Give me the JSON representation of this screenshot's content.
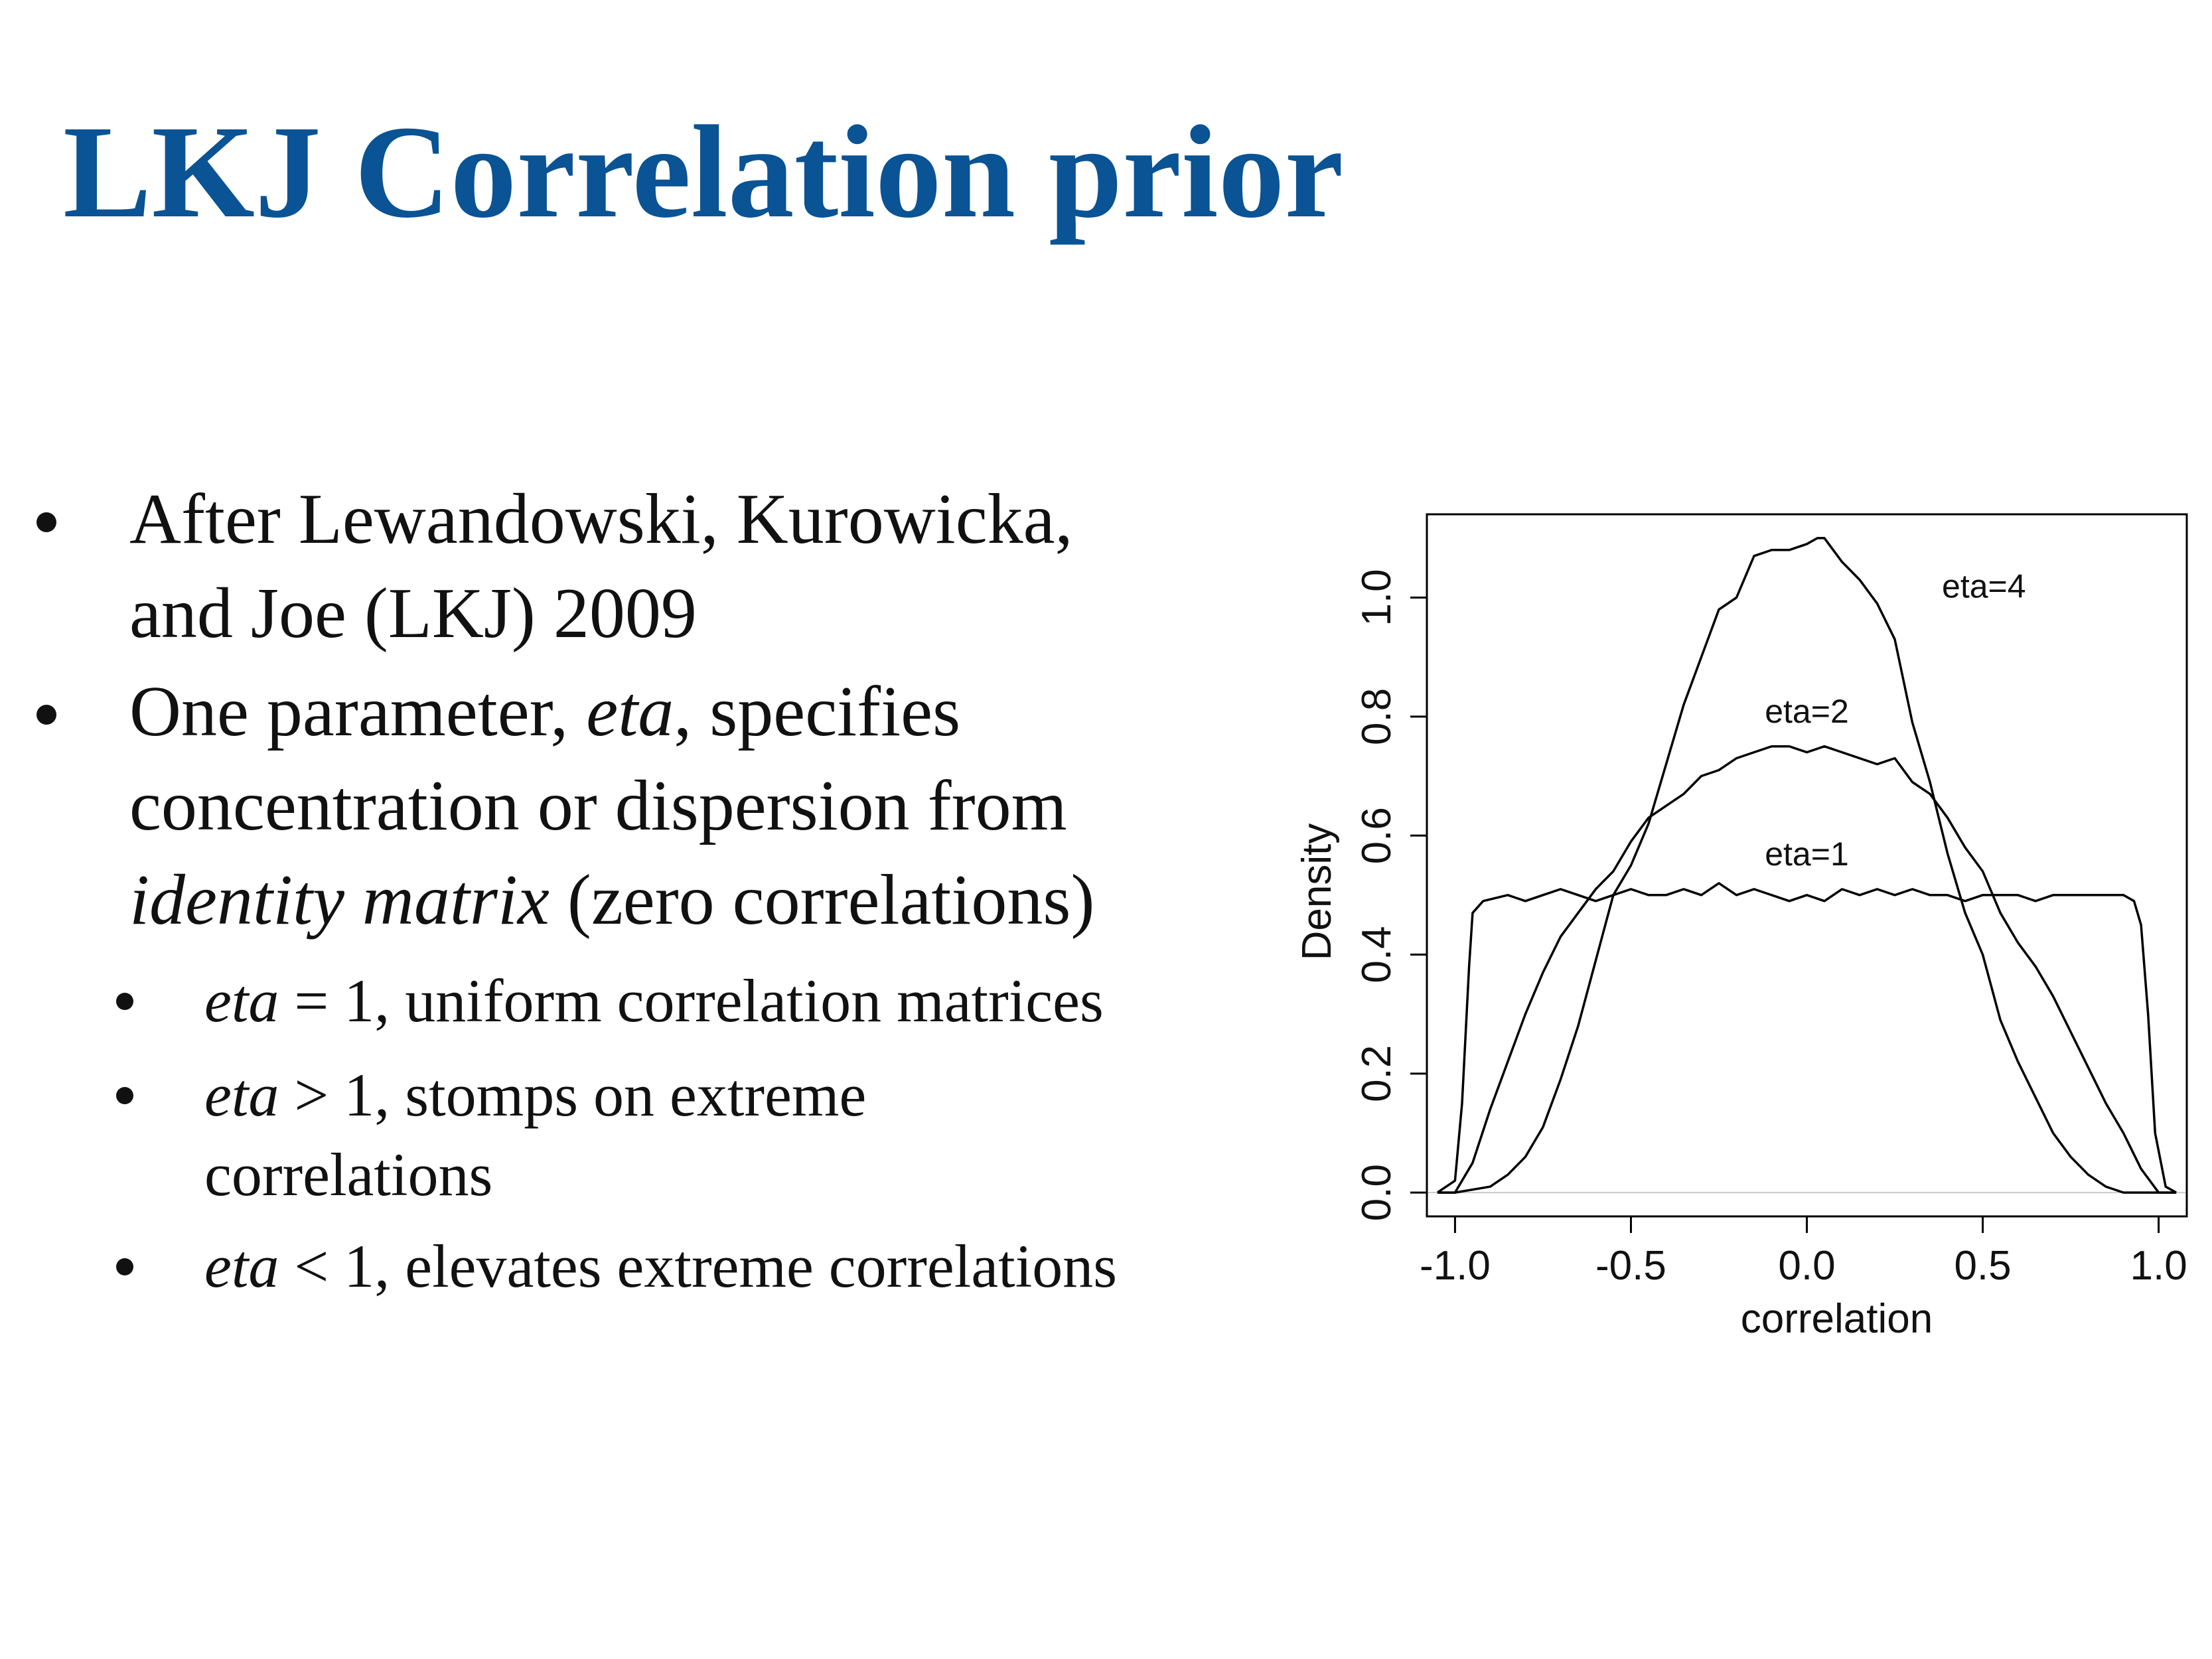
{
  "slide": {
    "title": "LKJ Correlation prior",
    "bullets": [
      {
        "lines": [
          "After Lewandowski, Kurowicka,",
          "and Joe (LKJ) 2009"
        ]
      },
      {
        "line1_pre": "One parameter, ",
        "line1_em": "eta",
        "line1_post": ", specifies",
        "line2": "concentration or dispersion from",
        "line3_em": "identity matrix",
        "line3_post": " (zero correlations)"
      }
    ],
    "sub_bullets": [
      {
        "em": "eta",
        "text": " = 1, uniform correlation matrices"
      },
      {
        "em": "eta",
        "text": " > 1, stomps on extreme",
        "text2": "correlations"
      },
      {
        "em": "eta",
        "text": " < 1, elevates extreme correlations"
      }
    ]
  },
  "colors": {
    "title": "#0a5394",
    "text": "#111111",
    "curve": "#000000",
    "baseline": "#cccccc"
  },
  "chart_data": {
    "type": "line",
    "xlabel": "correlation",
    "ylabel": "Density",
    "xlim": [
      -1.08,
      1.08
    ],
    "ylim": [
      -0.04,
      1.14
    ],
    "xticks": [
      "-1.0",
      "-0.5",
      "0.0",
      "0.5",
      "1.0"
    ],
    "xtick_values": [
      -1.0,
      -0.5,
      0.0,
      0.5,
      1.0
    ],
    "yticks": [
      "0.0",
      "0.2",
      "0.4",
      "0.6",
      "0.8",
      "1.0"
    ],
    "ytick_values": [
      0.0,
      0.2,
      0.4,
      0.6,
      0.8,
      1.0
    ],
    "baseline": 0.0,
    "series": [
      {
        "name": "eta=1",
        "label_at": [
          0.0,
          0.55
        ],
        "x": [
          -1.05,
          -1.0,
          -0.98,
          -0.96,
          -0.95,
          -0.92,
          -0.85,
          -0.8,
          -0.75,
          -0.7,
          -0.65,
          -0.6,
          -0.55,
          -0.5,
          -0.45,
          -0.4,
          -0.35,
          -0.3,
          -0.25,
          -0.2,
          -0.15,
          -0.1,
          -0.05,
          0.0,
          0.05,
          0.1,
          0.15,
          0.2,
          0.25,
          0.3,
          0.35,
          0.4,
          0.45,
          0.5,
          0.55,
          0.6,
          0.65,
          0.7,
          0.75,
          0.8,
          0.85,
          0.9,
          0.93,
          0.95,
          0.97,
          0.99,
          1.02,
          1.05
        ],
        "y": [
          0.0,
          0.02,
          0.15,
          0.38,
          0.47,
          0.49,
          0.5,
          0.49,
          0.5,
          0.51,
          0.5,
          0.49,
          0.5,
          0.51,
          0.5,
          0.5,
          0.51,
          0.5,
          0.52,
          0.5,
          0.51,
          0.5,
          0.49,
          0.5,
          0.49,
          0.51,
          0.5,
          0.51,
          0.5,
          0.51,
          0.5,
          0.5,
          0.49,
          0.5,
          0.5,
          0.5,
          0.49,
          0.5,
          0.5,
          0.5,
          0.5,
          0.5,
          0.49,
          0.45,
          0.3,
          0.1,
          0.01,
          0.0
        ]
      },
      {
        "name": "eta=2",
        "label_at": [
          0.0,
          0.79
        ],
        "x": [
          -1.05,
          -1.0,
          -0.95,
          -0.9,
          -0.85,
          -0.8,
          -0.75,
          -0.7,
          -0.65,
          -0.6,
          -0.55,
          -0.5,
          -0.45,
          -0.4,
          -0.35,
          -0.3,
          -0.25,
          -0.2,
          -0.15,
          -0.1,
          -0.05,
          0.0,
          0.05,
          0.1,
          0.15,
          0.2,
          0.25,
          0.3,
          0.35,
          0.4,
          0.45,
          0.5,
          0.55,
          0.6,
          0.65,
          0.7,
          0.75,
          0.8,
          0.85,
          0.9,
          0.95,
          1.0,
          1.05
        ],
        "y": [
          0.0,
          0.0,
          0.05,
          0.14,
          0.22,
          0.3,
          0.37,
          0.43,
          0.47,
          0.51,
          0.54,
          0.59,
          0.63,
          0.65,
          0.67,
          0.7,
          0.71,
          0.73,
          0.74,
          0.75,
          0.75,
          0.74,
          0.75,
          0.74,
          0.73,
          0.72,
          0.73,
          0.69,
          0.67,
          0.63,
          0.58,
          0.54,
          0.47,
          0.42,
          0.38,
          0.33,
          0.27,
          0.21,
          0.15,
          0.1,
          0.04,
          0.0,
          0.0
        ]
      },
      {
        "name": "eta=4",
        "label_at": [
          0.35,
          1.0
        ],
        "x": [
          -1.05,
          -1.0,
          -0.9,
          -0.85,
          -0.8,
          -0.75,
          -0.7,
          -0.65,
          -0.6,
          -0.55,
          -0.5,
          -0.45,
          -0.4,
          -0.35,
          -0.3,
          -0.25,
          -0.2,
          -0.15,
          -0.1,
          -0.05,
          0.0,
          0.03,
          0.05,
          0.1,
          0.15,
          0.2,
          0.25,
          0.3,
          0.35,
          0.4,
          0.45,
          0.5,
          0.55,
          0.6,
          0.65,
          0.7,
          0.75,
          0.8,
          0.85,
          0.9,
          1.0,
          1.05
        ],
        "y": [
          0.0,
          0.0,
          0.01,
          0.03,
          0.06,
          0.11,
          0.19,
          0.28,
          0.39,
          0.5,
          0.55,
          0.62,
          0.72,
          0.82,
          0.9,
          0.98,
          1.0,
          1.07,
          1.08,
          1.08,
          1.09,
          1.1,
          1.1,
          1.06,
          1.03,
          0.99,
          0.93,
          0.79,
          0.69,
          0.57,
          0.47,
          0.4,
          0.29,
          0.22,
          0.16,
          0.1,
          0.06,
          0.03,
          0.01,
          0.0,
          0.0,
          0.0
        ]
      }
    ]
  }
}
